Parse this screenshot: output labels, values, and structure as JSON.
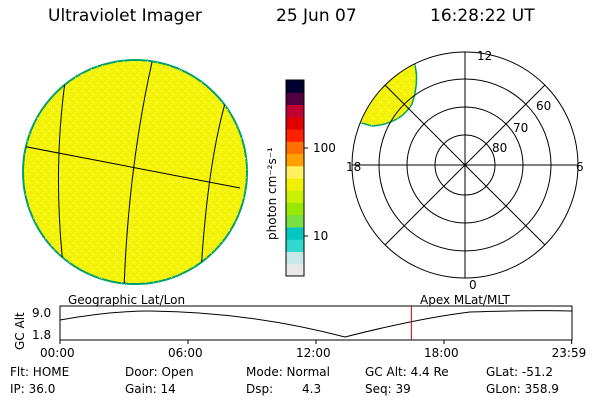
{
  "header": {
    "instrument": "Ultraviolet Imager",
    "date": "25 Jun 07",
    "time": "16:28:22 UT"
  },
  "colorbar": {
    "unit_label": "photon cm⁻²s⁻¹",
    "ticks": [
      {
        "label": "100",
        "value": 100
      },
      {
        "label": "10",
        "value": 10
      }
    ],
    "colors": [
      "#e8e8e8",
      "#c8e8e8",
      "#30d8d0",
      "#00c8c0",
      "#78e040",
      "#98e800",
      "#c8f000",
      "#f0f000",
      "#fff060",
      "#ffa000",
      "#ff7000",
      "#ff2000",
      "#e00000",
      "#c00030",
      "#500040",
      "#000030"
    ]
  },
  "geo_panel": {
    "label": "Geographic Lat/Lon",
    "fill_color": "#f4f400",
    "edge_color": "#00a070"
  },
  "polar_panel": {
    "label": "Apex MLat/MLT",
    "mlt_labels": {
      "top": "12",
      "bottom": "0",
      "left": "18",
      "right": "6"
    },
    "lat_labels": [
      "60",
      "70",
      "80"
    ],
    "fill_color": "#f4f400"
  },
  "altitude_plot": {
    "ylabel": "GC Alt",
    "y_ticks": [
      "9.0",
      "1.8"
    ],
    "x_ticks": [
      "00:00",
      "06:00",
      "12:00",
      "18:00",
      "23:59"
    ],
    "current_time_hour": 16.47,
    "marker_color": "#c00000"
  },
  "status": {
    "flt": "Flt: HOME",
    "door": "Door: Open",
    "mode": "Mode: Normal",
    "gc_alt": "GC Alt: 4.4 Re",
    "glat": "GLat: -51.2",
    "ip": "IP: 36.0",
    "gain": "Gain: 14",
    "dsp_label": "Dsp:",
    "dsp_value": "4.3",
    "seq": "Seq: 39",
    "glon": "GLon: 358.9"
  }
}
